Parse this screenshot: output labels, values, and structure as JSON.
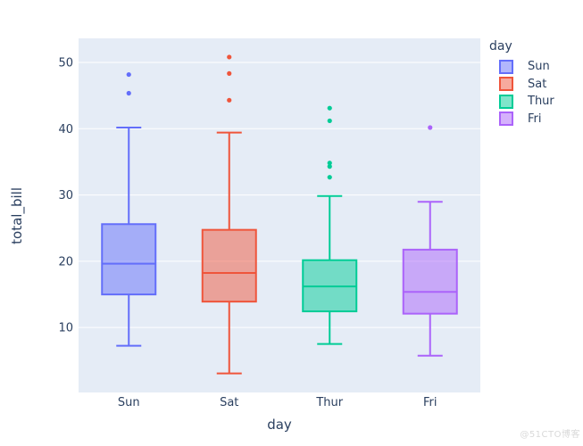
{
  "watermark": "@51CTO博客",
  "chart_data": {
    "type": "box",
    "title": "",
    "xlabel": "day",
    "ylabel": "total_bill",
    "categories": [
      "Sun",
      "Sat",
      "Thur",
      "Fri"
    ],
    "yticks": [
      10,
      20,
      30,
      40,
      50
    ],
    "ylim": [
      0.2,
      53.63
    ],
    "grid": true,
    "plot_bg_color": "#E5ECF6",
    "grid_color": "#ffffff",
    "text_color": "#2a3f5f",
    "legend": {
      "title": "day",
      "position": "top-right",
      "entries": [
        "Sun",
        "Sat",
        "Thur",
        "Fri"
      ]
    },
    "series": [
      {
        "name": "Sun",
        "color": "#636EFA",
        "whisker_low": 7.25,
        "q1": 14.99,
        "median": 19.63,
        "q3": 25.6,
        "whisker_high": 40.17,
        "outliers": [
          45.35,
          48.17
        ]
      },
      {
        "name": "Sat",
        "color": "#EF553B",
        "whisker_low": 3.07,
        "q1": 13.91,
        "median": 18.24,
        "q3": 24.74,
        "whisker_high": 39.42,
        "outliers": [
          44.3,
          48.33,
          50.81
        ]
      },
      {
        "name": "Thur",
        "color": "#00CC96",
        "whisker_low": 7.51,
        "q1": 12.44,
        "median": 16.2,
        "q3": 20.16,
        "whisker_high": 29.85,
        "outliers": [
          32.68,
          34.3,
          34.83,
          41.19,
          43.11
        ]
      },
      {
        "name": "Fri",
        "color": "#AB63FA",
        "whisker_low": 5.75,
        "q1": 12.09,
        "median": 15.38,
        "q3": 21.75,
        "whisker_high": 28.97,
        "outliers": [
          40.17
        ]
      }
    ]
  }
}
